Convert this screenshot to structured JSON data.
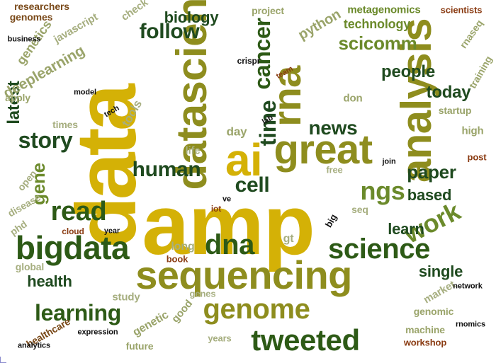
{
  "colors": {
    "gold": "#d4b106",
    "olive": "#8e8d1e",
    "dark_green": "#2d5a16",
    "forest": "#1f4a1f",
    "moss": "#6b8a2b",
    "sage": "#9aa46a",
    "grey_green": "#a6ae7f",
    "brown": "#7a4a1a",
    "rust": "#8a3b12",
    "black": "#111111"
  },
  "words": [
    {
      "id": "amp",
      "text": "amp",
      "color": "gold"
    },
    {
      "id": "data",
      "text": "data",
      "color": "gold"
    },
    {
      "id": "sequencing",
      "text": "sequencing",
      "color": "olive"
    },
    {
      "id": "analysis",
      "text": "analysis",
      "color": "olive"
    },
    {
      "id": "datascience",
      "text": "datascience",
      "color": "olive"
    },
    {
      "id": "great",
      "text": "great",
      "color": "olive"
    },
    {
      "id": "ai",
      "text": "ai",
      "color": "gold"
    },
    {
      "id": "rna",
      "text": "rna",
      "color": "olive"
    },
    {
      "id": "bigdata",
      "text": "bigdata",
      "color": "dark_green"
    },
    {
      "id": "genome",
      "text": "genome",
      "color": "olive"
    },
    {
      "id": "tweeted",
      "text": "tweeted",
      "color": "dark_green"
    },
    {
      "id": "science",
      "text": "science",
      "color": "dark_green"
    },
    {
      "id": "dna",
      "text": "dna",
      "color": "dark_green"
    },
    {
      "id": "read",
      "text": "read",
      "color": "dark_green"
    },
    {
      "id": "learning",
      "text": "learning",
      "color": "dark_green"
    },
    {
      "id": "human",
      "text": "human",
      "color": "forest"
    },
    {
      "id": "follow",
      "text": "follow",
      "color": "forest"
    },
    {
      "id": "story",
      "text": "story",
      "color": "forest"
    },
    {
      "id": "cell",
      "text": "cell",
      "color": "forest"
    },
    {
      "id": "ngs",
      "text": "ngs",
      "color": "moss"
    },
    {
      "id": "work",
      "text": "work",
      "color": "moss"
    },
    {
      "id": "cancer",
      "text": "cancer",
      "color": "dark_green"
    },
    {
      "id": "time",
      "text": "time",
      "color": "forest"
    },
    {
      "id": "biology",
      "text": "biology",
      "color": "forest"
    },
    {
      "id": "news",
      "text": "news",
      "color": "forest"
    },
    {
      "id": "paper",
      "text": "paper",
      "color": "forest"
    },
    {
      "id": "people",
      "text": "people",
      "color": "forest"
    },
    {
      "id": "today",
      "text": "today",
      "color": "forest"
    },
    {
      "id": "gene",
      "text": "gene",
      "color": "moss"
    },
    {
      "id": "scicomm",
      "text": "scicomm",
      "color": "moss"
    },
    {
      "id": "based",
      "text": "based",
      "color": "forest"
    },
    {
      "id": "learn",
      "text": "learn",
      "color": "forest"
    },
    {
      "id": "single",
      "text": "single",
      "color": "forest"
    },
    {
      "id": "health",
      "text": "health",
      "color": "forest"
    },
    {
      "id": "latest",
      "text": "latest",
      "color": "forest"
    },
    {
      "id": "deeplearning",
      "text": "deeplearning",
      "color": "sage"
    },
    {
      "id": "genetics",
      "text": "genetics",
      "color": "sage"
    },
    {
      "id": "python",
      "text": "python",
      "color": "sage"
    },
    {
      "id": "technology",
      "text": "technology",
      "color": "moss"
    },
    {
      "id": "metagenomics",
      "text": "metagenomics",
      "color": "moss"
    },
    {
      "id": "javascript",
      "text": "javascript",
      "color": "grey_green"
    },
    {
      "id": "researchers",
      "text": "researchers",
      "color": "brown"
    },
    {
      "id": "genomes",
      "text": "genomes",
      "color": "brown"
    },
    {
      "id": "scientists",
      "text": "scientists",
      "color": "rust"
    },
    {
      "id": "business",
      "text": "business",
      "color": "black"
    },
    {
      "id": "check",
      "text": "check",
      "color": "grey_green"
    },
    {
      "id": "project",
      "text": "project",
      "color": "sage"
    },
    {
      "id": "crispr",
      "text": "crispr",
      "color": "black"
    },
    {
      "id": "rnaseq",
      "text": "rnaseq",
      "color": "sage"
    },
    {
      "id": "training",
      "text": "training",
      "color": "sage"
    },
    {
      "id": "model",
      "text": "model",
      "color": "black"
    },
    {
      "id": "apply",
      "text": "apply",
      "color": "sage"
    },
    {
      "id": "tech",
      "text": "tech",
      "color": "black"
    },
    {
      "id": "team",
      "text": "team",
      "color": "rust"
    },
    {
      "id": "times",
      "text": "times",
      "color": "grey_green"
    },
    {
      "id": "tools",
      "text": "tools",
      "color": "grey_green"
    },
    {
      "id": "day",
      "text": "day",
      "color": "sage"
    },
    {
      "id": "lab",
      "text": "lab",
      "color": "black"
    },
    {
      "id": "don",
      "text": "don",
      "color": "sage"
    },
    {
      "id": "startup",
      "text": "startup",
      "color": "sage"
    },
    {
      "id": "high",
      "text": "high",
      "color": "sage"
    },
    {
      "id": "post",
      "text": "post",
      "color": "rust"
    },
    {
      "id": "join",
      "text": "join",
      "color": "black"
    },
    {
      "id": "life",
      "text": "life",
      "color": "grey_green"
    },
    {
      "id": "free",
      "text": "free",
      "color": "grey_green"
    },
    {
      "id": "open",
      "text": "open",
      "color": "grey_green"
    },
    {
      "id": "disease",
      "text": "disease",
      "color": "grey_green"
    },
    {
      "id": "phd",
      "text": "phd",
      "color": "grey_green"
    },
    {
      "id": "ve",
      "text": "ve",
      "color": "black"
    },
    {
      "id": "iot",
      "text": "iot",
      "color": "rust"
    },
    {
      "id": "big",
      "text": "big",
      "color": "black"
    },
    {
      "id": "seq",
      "text": "seq",
      "color": "grey_green"
    },
    {
      "id": "cloud",
      "text": "cloud",
      "color": "rust"
    },
    {
      "id": "year",
      "text": "year",
      "color": "black"
    },
    {
      "id": "long",
      "text": "long",
      "color": "grey_green"
    },
    {
      "id": "gt",
      "text": "gt",
      "color": "grey_green"
    },
    {
      "id": "book",
      "text": "book",
      "color": "rust"
    },
    {
      "id": "global",
      "text": "global",
      "color": "grey_green"
    },
    {
      "id": "market",
      "text": "market",
      "color": "grey_green"
    },
    {
      "id": "network",
      "text": "network",
      "color": "black"
    },
    {
      "id": "study",
      "text": "study",
      "color": "grey_green"
    },
    {
      "id": "genes",
      "text": "genes",
      "color": "grey_green"
    },
    {
      "id": "genomic",
      "text": "genomic",
      "color": "sage"
    },
    {
      "id": "rnomics",
      "text": "rnomics",
      "color": "black"
    },
    {
      "id": "machine",
      "text": "machine",
      "color": "sage"
    },
    {
      "id": "workshop",
      "text": "workshop",
      "color": "rust"
    },
    {
      "id": "genetic",
      "text": "genetic",
      "color": "sage"
    },
    {
      "id": "good",
      "text": "good",
      "color": "sage"
    },
    {
      "id": "healthcare",
      "text": "healthcare",
      "color": "brown"
    },
    {
      "id": "expression",
      "text": "expression",
      "color": "black"
    },
    {
      "id": "future",
      "text": "future",
      "color": "sage"
    },
    {
      "id": "years",
      "text": "years",
      "color": "grey_green"
    },
    {
      "id": "analytics",
      "text": "analytics",
      "color": "black"
    }
  ]
}
